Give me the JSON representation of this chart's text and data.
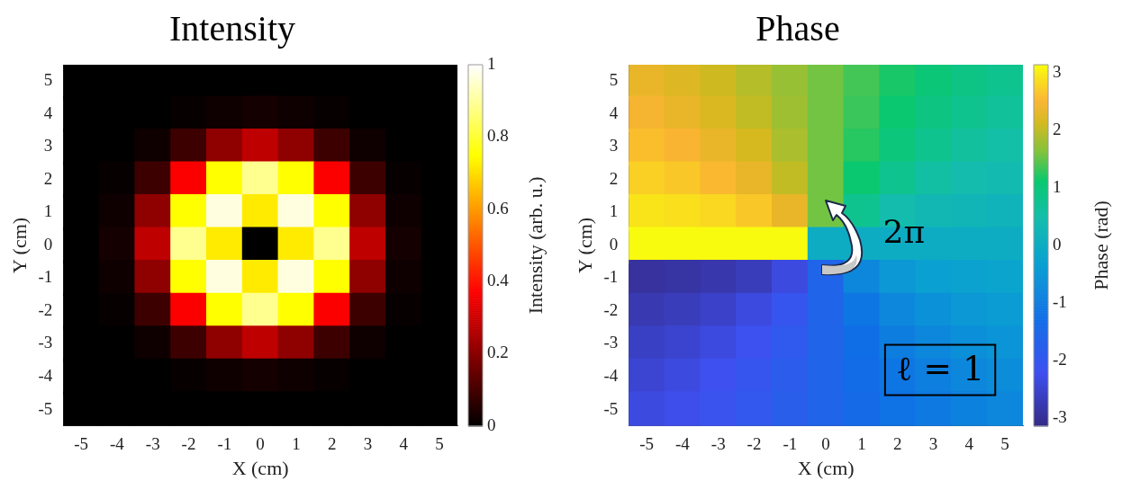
{
  "chart_data": [
    {
      "type": "heatmap",
      "title": "Intensity",
      "xlabel": "X (cm)",
      "ylabel": "Y (cm)",
      "clabel": "Intensity (arb. u.)",
      "categories": [
        "-5",
        "-4",
        "-3",
        "-2",
        "-1",
        "0",
        "1",
        "2",
        "3",
        "4",
        "5"
      ],
      "y_categories": [
        "5",
        "4",
        "3",
        "2",
        "1",
        "0",
        "-1",
        "-2",
        "-3",
        "-4",
        "-5"
      ],
      "cells": [
        [
          0,
          0,
          0,
          0,
          0,
          0,
          0,
          0,
          0,
          0,
          0
        ],
        [
          0,
          0,
          0,
          0.01,
          0.02,
          0.03,
          0.02,
          0.01,
          0,
          0,
          0
        ],
        [
          0,
          0,
          0.02,
          0.09,
          0.21,
          0.28,
          0.21,
          0.09,
          0.02,
          0,
          0
        ],
        [
          0,
          0.01,
          0.09,
          0.37,
          0.75,
          0.89,
          0.75,
          0.37,
          0.09,
          0.01,
          0
        ],
        [
          0,
          0.02,
          0.21,
          0.75,
          0.97,
          0.72,
          0.97,
          0.75,
          0.21,
          0.02,
          0
        ],
        [
          0,
          0.03,
          0.28,
          0.89,
          0.72,
          0,
          0.72,
          0.89,
          0.28,
          0.03,
          0
        ],
        [
          0,
          0.02,
          0.21,
          0.75,
          0.97,
          0.72,
          0.97,
          0.75,
          0.21,
          0.02,
          0
        ],
        [
          0,
          0.01,
          0.09,
          0.37,
          0.75,
          0.89,
          0.75,
          0.37,
          0.09,
          0.01,
          0
        ],
        [
          0,
          0,
          0.02,
          0.09,
          0.21,
          0.28,
          0.21,
          0.09,
          0.02,
          0,
          0
        ],
        [
          0,
          0,
          0,
          0.01,
          0.02,
          0.03,
          0.02,
          0.01,
          0,
          0,
          0
        ],
        [
          0,
          0,
          0,
          0,
          0,
          0,
          0,
          0,
          0,
          0,
          0
        ]
      ],
      "clim": [
        0,
        1
      ],
      "cticks": [
        0,
        0.2,
        0.4,
        0.6,
        0.8,
        1
      ]
    },
    {
      "type": "heatmap",
      "title": "Phase",
      "xlabel": "X (cm)",
      "ylabel": "Y (cm)",
      "clabel": "Phase (rad)",
      "categories": [
        "-5",
        "-4",
        "-3",
        "-2",
        "-1",
        "0",
        "1",
        "2",
        "3",
        "4",
        "5"
      ],
      "y_categories": [
        "5",
        "4",
        "3",
        "2",
        "1",
        "0",
        "-1",
        "-2",
        "-3",
        "-4",
        "-5"
      ],
      "cells": [
        [
          2.35,
          2.24,
          2.11,
          1.95,
          1.77,
          1.57,
          1.37,
          1.19,
          1.03,
          0.9,
          0.79
        ],
        [
          2.47,
          2.35,
          2.21,
          2.03,
          1.81,
          1.57,
          1.33,
          1.11,
          0.93,
          0.79,
          0.67
        ],
        [
          2.6,
          2.5,
          2.35,
          2.16,
          1.89,
          1.57,
          1.25,
          0.98,
          0.79,
          0.64,
          0.54
        ],
        [
          2.76,
          2.68,
          2.55,
          2.35,
          2.03,
          1.57,
          1.11,
          0.79,
          0.59,
          0.46,
          0.38
        ],
        [
          2.94,
          2.89,
          2.82,
          2.68,
          2.35,
          1.57,
          0.79,
          0.46,
          0.32,
          0.25,
          0.2
        ],
        [
          3.14,
          3.14,
          3.14,
          3.14,
          3.14,
          0,
          0,
          0,
          0,
          0,
          0
        ],
        [
          -2.94,
          -2.89,
          -2.82,
          -2.68,
          -2.35,
          -1.57,
          -0.79,
          -0.46,
          -0.32,
          -0.25,
          -0.2
        ],
        [
          -2.76,
          -2.68,
          -2.55,
          -2.35,
          -2.03,
          -1.57,
          -1.11,
          -0.79,
          -0.59,
          -0.46,
          -0.38
        ],
        [
          -2.6,
          -2.5,
          -2.35,
          -2.16,
          -1.89,
          -1.57,
          -1.25,
          -0.98,
          -0.79,
          -0.64,
          -0.54
        ],
        [
          -2.47,
          -2.35,
          -2.21,
          -2.03,
          -1.81,
          -1.57,
          -1.33,
          -1.11,
          -0.93,
          -0.79,
          -0.67
        ],
        [
          -2.35,
          -2.24,
          -2.11,
          -1.95,
          -1.77,
          -1.57,
          -1.37,
          -1.19,
          -1.03,
          -0.9,
          -0.79
        ]
      ],
      "clim": [
        -3.14,
        3.14
      ],
      "cticks": [
        -3,
        -2,
        -1,
        0,
        1,
        2,
        3
      ],
      "annotations": [
        "2π",
        "ℓ = 1"
      ]
    }
  ]
}
